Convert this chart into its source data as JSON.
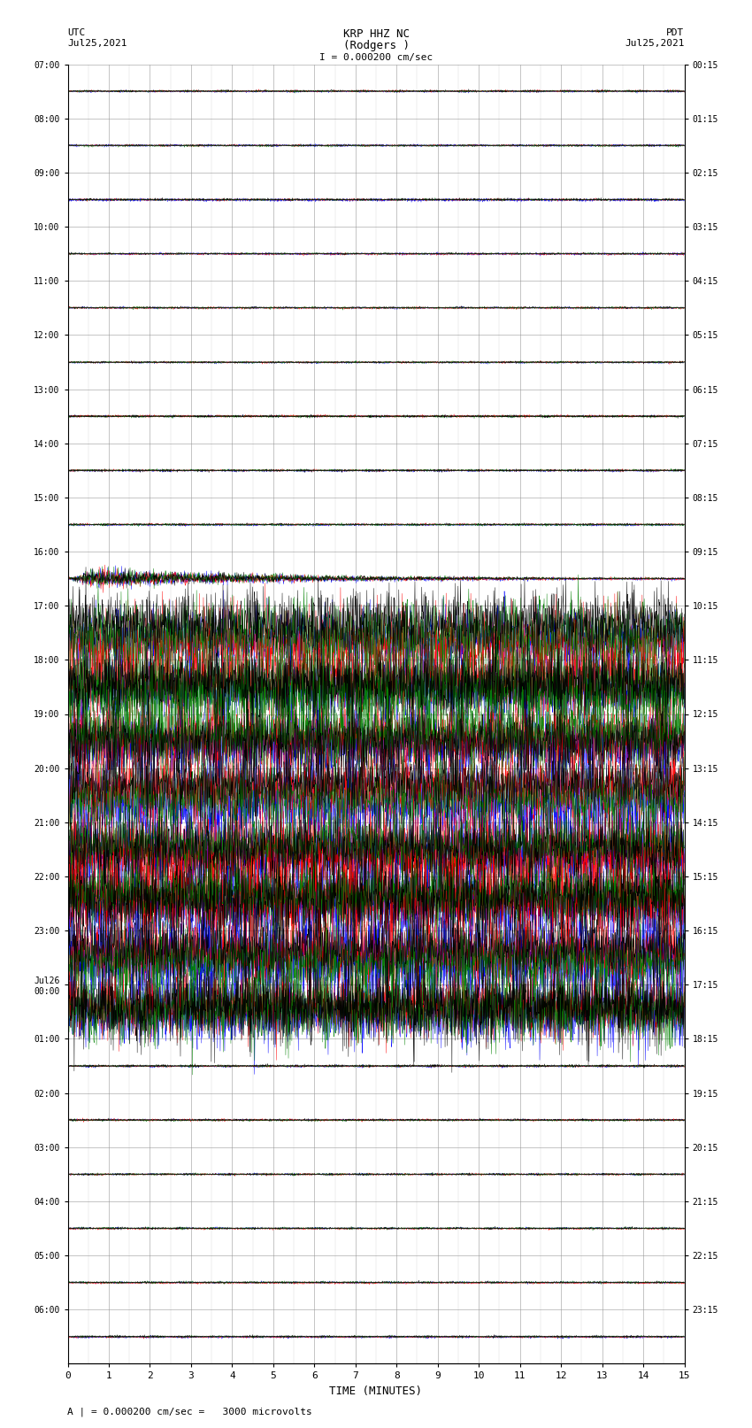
{
  "title_line1": "KRP HHZ NC",
  "title_line2": "(Rodgers )",
  "scale_label": "I = 0.000200 cm/sec",
  "bottom_label": "A | = 0.000200 cm/sec =   3000 microvolts",
  "xlabel": "TIME (MINUTES)",
  "utc_label": "UTC\nJul25,2021",
  "pdt_label": "PDT\nJul25,2021",
  "left_times_utc": [
    "07:00",
    "08:00",
    "09:00",
    "10:00",
    "11:00",
    "12:00",
    "13:00",
    "14:00",
    "15:00",
    "16:00",
    "17:00",
    "18:00",
    "19:00",
    "20:00",
    "21:00",
    "22:00",
    "23:00",
    "Jul26\n00:00",
    "01:00",
    "02:00",
    "03:00",
    "04:00",
    "05:00",
    "06:00"
  ],
  "right_times_pdt": [
    "00:15",
    "01:15",
    "02:15",
    "03:15",
    "04:15",
    "05:15",
    "06:15",
    "07:15",
    "08:15",
    "09:15",
    "10:15",
    "11:15",
    "12:15",
    "13:15",
    "14:15",
    "15:15",
    "16:15",
    "17:15",
    "18:15",
    "19:15",
    "20:15",
    "21:15",
    "22:15",
    "23:15"
  ],
  "n_rows": 24,
  "n_minutes": 15,
  "background_color": "#ffffff",
  "grid_color": "#999999",
  "trace_colors": [
    "blue",
    "red",
    "green",
    "black"
  ],
  "noise_amplitude_quiet": 0.015,
  "noise_amplitude_pre_eq": 0.015,
  "noise_amplitude_active": 0.55,
  "noise_amplitude_post": 0.015
}
